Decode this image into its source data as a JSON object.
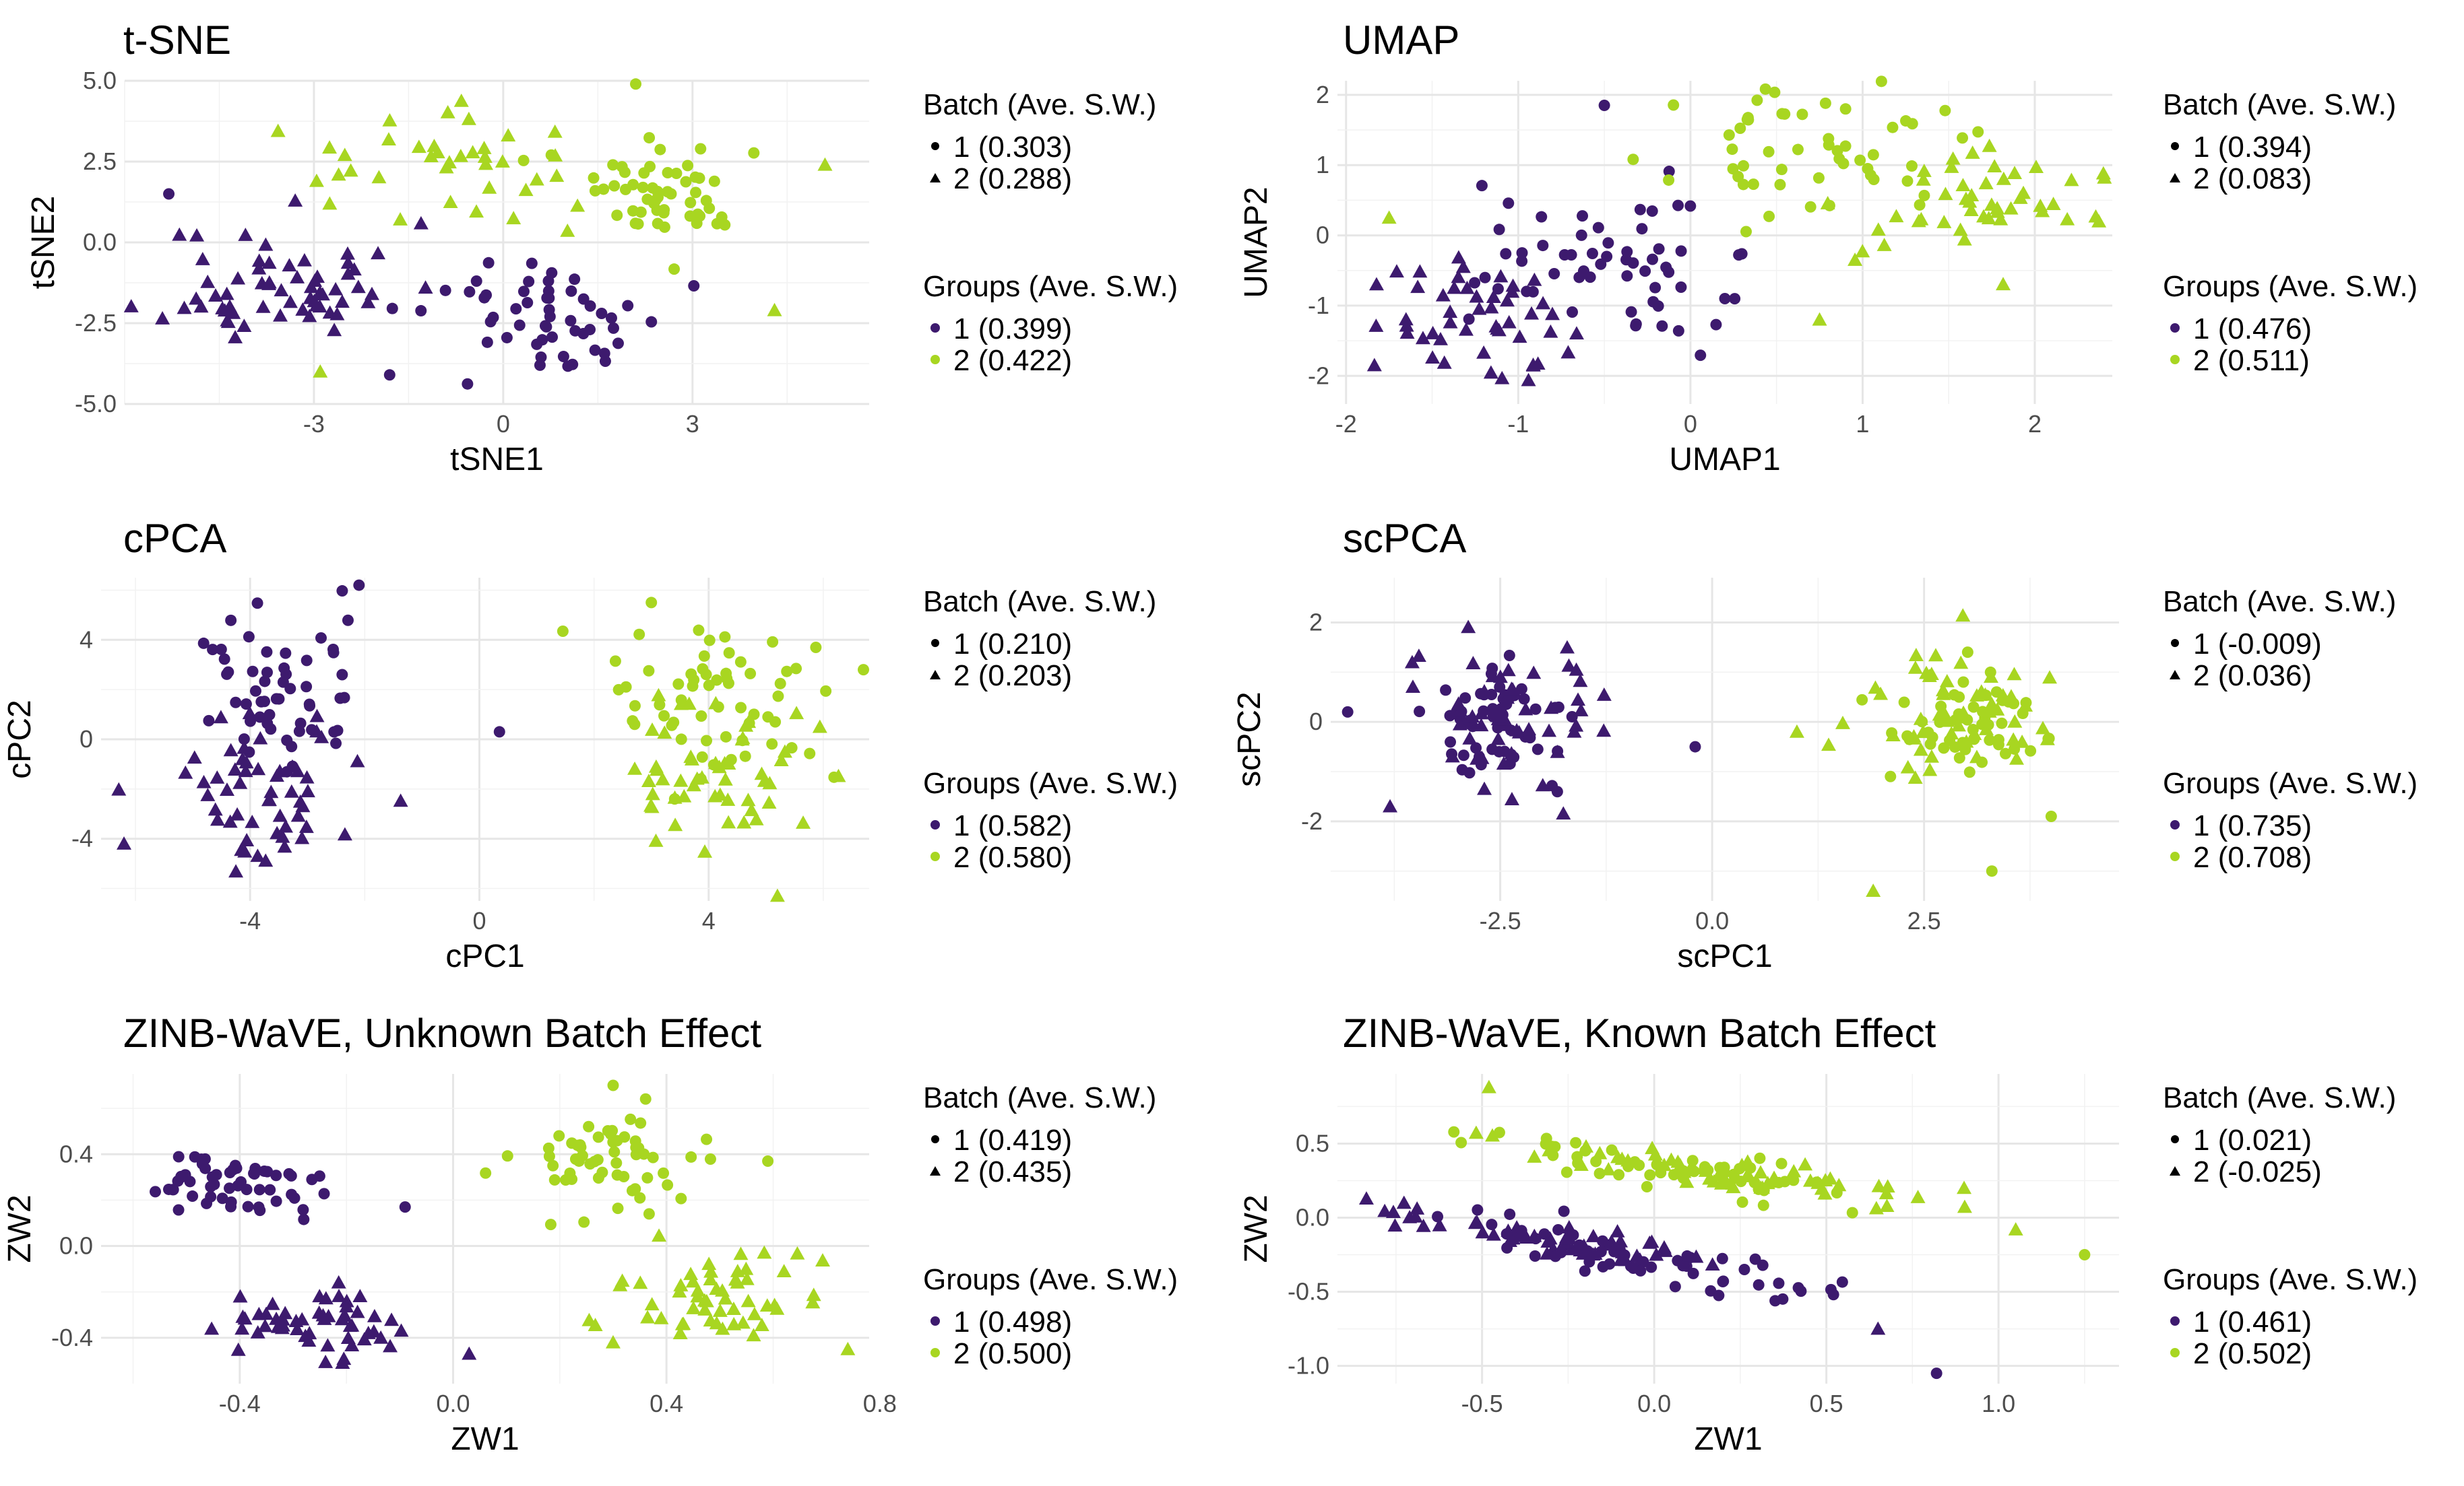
{
  "colors": {
    "group1": "#3d1a6e",
    "group2": "#a8d621",
    "grid_major": "#e6e6e6",
    "grid_minor": "#f2f2f2"
  },
  "marker_shapes": {
    "batch_1": "circle",
    "batch_2": "triangle"
  },
  "chart_data": [
    {
      "type": "scatter",
      "title": "t-SNE",
      "xlabel": "tSNE1",
      "ylabel": "tSNE2",
      "xlim": [
        -6,
        5.8
      ],
      "ylim": [
        -5,
        5
      ],
      "xticks": [
        -3,
        0,
        3
      ],
      "xtick_labels": [
        "-3",
        "0",
        "3"
      ],
      "yticks": [
        -5,
        -2.5,
        0,
        2.5,
        5
      ],
      "ytick_labels": [
        "-5.0",
        "-2.5",
        "0.0",
        "2.5",
        "5.0"
      ],
      "grid": true,
      "legend": {
        "batch_title": "Batch (Ave. S.W.)",
        "batch_items": [
          "1 (0.303)",
          "2 (0.288)"
        ],
        "groups_title": "Groups (Ave. S.W.)",
        "groups_items": [
          "1 (0.399)",
          "2 (0.422)"
        ]
      },
      "clusters": [
        {
          "group": 1,
          "batch": 2,
          "n": 62,
          "cx": -3.5,
          "cy": -1.3,
          "sx": 0.95,
          "sy": 0.95,
          "seed": 11
        },
        {
          "group": 1,
          "batch": 1,
          "n": 55,
          "cx": 0.9,
          "cy": -2.4,
          "sx": 1.0,
          "sy": 0.9,
          "seed": 12
        },
        {
          "group": 2,
          "batch": 2,
          "n": 38,
          "cx": -0.8,
          "cy": 2.5,
          "sx": 1.2,
          "sy": 0.9,
          "seed": 13
        },
        {
          "group": 2,
          "batch": 1,
          "n": 55,
          "cx": 2.8,
          "cy": 1.6,
          "sx": 0.85,
          "sy": 0.75,
          "seed": 14
        }
      ],
      "outliers": [
        {
          "group": 1,
          "batch": 1,
          "x": -5.3,
          "y": 1.5
        },
        {
          "group": 2,
          "batch": 2,
          "x": 5.1,
          "y": 2.4
        },
        {
          "group": 2,
          "batch": 2,
          "x": 4.3,
          "y": -2.1
        },
        {
          "group": 2,
          "batch": 2,
          "x": -2.9,
          "y": -4.0
        },
        {
          "group": 2,
          "batch": 1,
          "x": 2.1,
          "y": 4.9
        },
        {
          "group": 1,
          "batch": 1,
          "x": -1.8,
          "y": -4.1
        }
      ]
    },
    {
      "type": "scatter",
      "title": "UMAP",
      "xlabel": "UMAP1",
      "ylabel": "UMAP2",
      "xlim": [
        -2.05,
        2.45
      ],
      "ylim": [
        -2.4,
        2.2
      ],
      "xticks": [
        -2,
        -1,
        0,
        1,
        2
      ],
      "xtick_labels": [
        "-2",
        "-1",
        "0",
        "1",
        "2"
      ],
      "yticks": [
        -2,
        -1,
        0,
        1,
        2
      ],
      "ytick_labels": [
        "-2",
        "-1",
        "0",
        "1",
        "2"
      ],
      "grid": true,
      "legend": {
        "batch_title": "Batch (Ave. S.W.)",
        "batch_items": [
          "1 (0.394)",
          "2 (0.083)"
        ],
        "groups_title": "Groups (Ave. S.W.)",
        "groups_items": [
          "1 (0.476)",
          "2 (0.511)"
        ]
      },
      "clusters": [
        {
          "group": 1,
          "batch": 2,
          "n": 52,
          "cx": -1.2,
          "cy": -1.3,
          "sx": 0.38,
          "sy": 0.45,
          "seed": 21
        },
        {
          "group": 1,
          "batch": 1,
          "n": 58,
          "cx": -0.55,
          "cy": -0.35,
          "sx": 0.38,
          "sy": 0.5,
          "seed": 22
        },
        {
          "group": 2,
          "batch": 1,
          "n": 55,
          "cx": 0.75,
          "cy": 1.2,
          "sx": 0.4,
          "sy": 0.45,
          "seed": 23
        },
        {
          "group": 2,
          "batch": 2,
          "n": 48,
          "cx": 1.6,
          "cy": 0.35,
          "sx": 0.4,
          "sy": 0.45,
          "seed": 24
        }
      ],
      "outliers": [
        {
          "group": 1,
          "batch": 1,
          "x": -0.5,
          "y": 1.85
        },
        {
          "group": 2,
          "batch": 2,
          "x": -1.75,
          "y": 0.25
        },
        {
          "group": 2,
          "batch": 2,
          "x": 0.75,
          "y": -1.2
        },
        {
          "group": 1,
          "batch": 1,
          "x": 0.2,
          "y": -0.9
        }
      ]
    },
    {
      "type": "scatter",
      "title": "cPCA",
      "xlabel": "cPC1",
      "ylabel": "cPC2",
      "xlim": [
        -6.6,
        6.8
      ],
      "ylim": [
        -6.5,
        6.5
      ],
      "xticks": [
        -4,
        0,
        4
      ],
      "xtick_labels": [
        "-4",
        "0",
        "4"
      ],
      "yticks": [
        -4,
        0,
        4
      ],
      "ytick_labels": [
        "-4",
        "0",
        "4"
      ],
      "grid": true,
      "legend": {
        "batch_title": "Batch (Ave. S.W.)",
        "batch_items": [
          "1 (0.210)",
          "2 (0.203)"
        ],
        "groups_title": "Groups (Ave. S.W.)",
        "groups_items": [
          "1 (0.582)",
          "2 (0.580)"
        ]
      },
      "clusters": [
        {
          "group": 1,
          "batch": 1,
          "n": 55,
          "cx": -3.6,
          "cy": 1.8,
          "sx": 0.75,
          "sy": 1.7,
          "seed": 31
        },
        {
          "group": 1,
          "batch": 2,
          "n": 55,
          "cx": -3.8,
          "cy": -2.0,
          "sx": 0.9,
          "sy": 1.5,
          "seed": 32
        },
        {
          "group": 2,
          "batch": 1,
          "n": 60,
          "cx": 4.1,
          "cy": 1.2,
          "sx": 0.9,
          "sy": 1.6,
          "seed": 33
        },
        {
          "group": 2,
          "batch": 2,
          "n": 52,
          "cx": 4.1,
          "cy": -1.5,
          "sx": 0.9,
          "sy": 1.7,
          "seed": 34
        }
      ],
      "outliers": [
        {
          "group": 1,
          "batch": 1,
          "x": 0.35,
          "y": 0.3
        },
        {
          "group": 1,
          "batch": 2,
          "x": -6.2,
          "y": -4.2
        },
        {
          "group": 1,
          "batch": 1,
          "x": -2.1,
          "y": 6.2
        },
        {
          "group": 2,
          "batch": 2,
          "x": 5.2,
          "y": -6.3
        },
        {
          "group": 2,
          "batch": 1,
          "x": 3.0,
          "y": 5.5
        },
        {
          "group": 2,
          "batch": 1,
          "x": 6.7,
          "y": 2.8
        }
      ]
    },
    {
      "type": "scatter",
      "title": "scPCA",
      "xlabel": "scPC1",
      "ylabel": "scPC2",
      "xlim": [
        -4.5,
        4.8
      ],
      "ylim": [
        -3.6,
        2.9
      ],
      "xticks": [
        -2.5,
        0,
        2.5
      ],
      "xtick_labels": [
        "-2.5",
        "0.0",
        "2.5"
      ],
      "yticks": [
        -2,
        0,
        2
      ],
      "ytick_labels": [
        "-2",
        "0",
        "2"
      ],
      "grid": true,
      "legend": {
        "batch_title": "Batch (Ave. S.W.)",
        "batch_items": [
          "1 (-0.009)",
          "2 (0.036)"
        ],
        "groups_title": "Groups (Ave. S.W.)",
        "groups_items": [
          "1 (0.735)",
          "2 (0.708)"
        ]
      },
      "clusters": [
        {
          "group": 1,
          "batch": 1,
          "n": 58,
          "cx": -2.4,
          "cy": 0.0,
          "sx": 0.45,
          "sy": 0.55,
          "seed": 41
        },
        {
          "group": 1,
          "batch": 2,
          "n": 52,
          "cx": -2.5,
          "cy": 0.3,
          "sx": 0.65,
          "sy": 0.8,
          "seed": 42
        },
        {
          "group": 2,
          "batch": 1,
          "n": 55,
          "cx": 2.9,
          "cy": 0.0,
          "sx": 0.5,
          "sy": 0.6,
          "seed": 43
        },
        {
          "group": 2,
          "batch": 2,
          "n": 55,
          "cx": 2.9,
          "cy": 0.1,
          "sx": 0.6,
          "sy": 0.85,
          "seed": 44
        }
      ],
      "outliers": [
        {
          "group": 1,
          "batch": 1,
          "x": -0.2,
          "y": -0.5
        },
        {
          "group": 1,
          "batch": 1,
          "x": -4.3,
          "y": 0.2
        },
        {
          "group": 1,
          "batch": 2,
          "x": -3.8,
          "y": -1.7
        },
        {
          "group": 2,
          "batch": 2,
          "x": 1.0,
          "y": -0.2
        },
        {
          "group": 2,
          "batch": 2,
          "x": 1.9,
          "y": -3.4
        },
        {
          "group": 2,
          "batch": 1,
          "x": 3.3,
          "y": -3.0
        },
        {
          "group": 2,
          "batch": 1,
          "x": 4.0,
          "y": -1.9
        }
      ]
    },
    {
      "type": "scatter",
      "title": "ZINB-WaVE, Unknown Batch Effect",
      "xlabel": "ZW1",
      "ylabel": "ZW2",
      "xlim": [
        -0.66,
        0.78
      ],
      "ylim": [
        -0.6,
        0.75
      ],
      "xticks": [
        -0.4,
        0,
        0.4,
        0.8
      ],
      "xtick_labels": [
        "-0.4",
        "0.0",
        "0.4",
        "0.8"
      ],
      "yticks": [
        -0.4,
        0,
        0.4
      ],
      "ytick_labels": [
        "-0.4",
        "0.0",
        "0.4"
      ],
      "grid": true,
      "legend": {
        "batch_title": "Batch (Ave. S.W.)",
        "batch_items": [
          "1 (0.419)",
          "2 (0.435)"
        ],
        "groups_title": "Groups (Ave. S.W.)",
        "groups_items": [
          "1 (0.498)",
          "2 (0.500)"
        ]
      },
      "clusters": [
        {
          "group": 1,
          "batch": 1,
          "n": 55,
          "cx": -0.42,
          "cy": 0.26,
          "sx": 0.09,
          "sy": 0.07,
          "seed": 51
        },
        {
          "group": 1,
          "batch": 2,
          "n": 55,
          "cx": -0.25,
          "cy": -0.35,
          "sx": 0.08,
          "sy": 0.08,
          "seed": 52
        },
        {
          "group": 2,
          "batch": 1,
          "n": 58,
          "cx": 0.3,
          "cy": 0.38,
          "sx": 0.09,
          "sy": 0.12,
          "seed": 53
        },
        {
          "group": 2,
          "batch": 2,
          "n": 55,
          "cx": 0.48,
          "cy": -0.2,
          "sx": 0.1,
          "sy": 0.12,
          "seed": 54
        }
      ],
      "outliers": [
        {
          "group": 1,
          "batch": 2,
          "x": 0.03,
          "y": -0.47
        },
        {
          "group": 1,
          "batch": 1,
          "x": -0.09,
          "y": 0.17
        },
        {
          "group": 2,
          "batch": 1,
          "x": 0.59,
          "y": 0.37
        },
        {
          "group": 2,
          "batch": 2,
          "x": 0.74,
          "y": -0.45
        },
        {
          "group": 2,
          "batch": 1,
          "x": 0.3,
          "y": 0.7
        }
      ]
    },
    {
      "type": "scatter",
      "title": "ZINB-WaVE, Known Batch Effect",
      "xlabel": "ZW1",
      "ylabel": "ZW2",
      "xlim": [
        -0.92,
        1.35
      ],
      "ylim": [
        -1.12,
        0.97
      ],
      "xticks": [
        -0.5,
        0,
        0.5,
        1.0
      ],
      "xtick_labels": [
        "-0.5",
        "0.0",
        "0.5",
        "1.0"
      ],
      "yticks": [
        -1.0,
        -0.5,
        0,
        0.5
      ],
      "ytick_labels": [
        "-1.0",
        "-0.5",
        "0.0",
        "0.5"
      ],
      "grid": true,
      "legend": {
        "batch_title": "Batch (Ave. S.W.)",
        "batch_items": [
          "1 (0.021)",
          "2 (-0.025)"
        ],
        "groups_title": "Groups (Ave. S.W.)",
        "groups_items": [
          "1 (0.461)",
          "2 (0.502)"
        ]
      },
      "clusters": [
        {
          "group": 1,
          "batch": 2,
          "n": 55,
          "cx": -0.35,
          "cy": -0.12,
          "sx": 0.28,
          "sy": 0.06,
          "slope": -0.35,
          "seed": 61
        },
        {
          "group": 1,
          "batch": 1,
          "n": 58,
          "cx": -0.02,
          "cy": -0.28,
          "sx": 0.25,
          "sy": 0.07,
          "slope": -0.45,
          "seed": 62
        },
        {
          "group": 2,
          "batch": 2,
          "n": 55,
          "cx": 0.15,
          "cy": 0.33,
          "sx": 0.32,
          "sy": 0.06,
          "slope": -0.35,
          "seed": 63
        },
        {
          "group": 2,
          "batch": 1,
          "n": 55,
          "cx": 0.05,
          "cy": 0.33,
          "sx": 0.25,
          "sy": 0.07,
          "slope": -0.4,
          "seed": 64
        }
      ],
      "outliers": [
        {
          "group": 1,
          "batch": 1,
          "x": 0.82,
          "y": -1.05
        },
        {
          "group": 1,
          "batch": 2,
          "x": 0.65,
          "y": -0.75
        },
        {
          "group": 2,
          "batch": 2,
          "x": -0.48,
          "y": 0.88
        },
        {
          "group": 2,
          "batch": 2,
          "x": 1.05,
          "y": -0.08
        },
        {
          "group": 2,
          "batch": 1,
          "x": 1.25,
          "y": -0.25
        },
        {
          "group": 2,
          "batch": 2,
          "x": 0.9,
          "y": 0.2
        }
      ]
    }
  ]
}
